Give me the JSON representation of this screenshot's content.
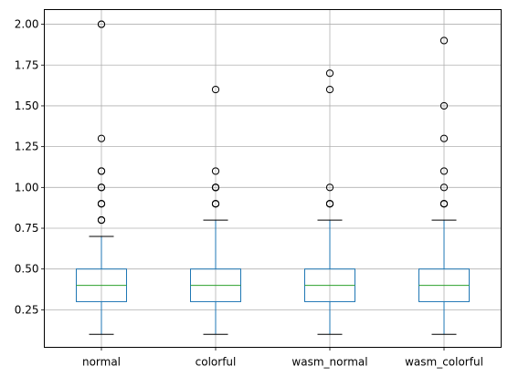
{
  "chart_data": {
    "type": "box",
    "title": "",
    "xlabel": "",
    "ylabel": "",
    "ylim": [
      0.02,
      2.09
    ],
    "yticks": [
      "0.25",
      "0.50",
      "0.75",
      "1.00",
      "1.25",
      "1.50",
      "1.75",
      "2.00"
    ],
    "grid": true,
    "categories": [
      "normal",
      "colorful",
      "wasm_normal",
      "wasm_colorful"
    ],
    "boxes": [
      {
        "label": "normal",
        "whisker_low": 0.1,
        "q1": 0.3,
        "median": 0.4,
        "q3": 0.5,
        "whisker_high": 0.7,
        "outliers": [
          0.8,
          0.8,
          0.8,
          0.9,
          0.9,
          0.9,
          1.0,
          1.0,
          1.1,
          1.1,
          1.3,
          2.0,
          2.0
        ]
      },
      {
        "label": "colorful",
        "whisker_low": 0.1,
        "q1": 0.3,
        "median": 0.4,
        "q3": 0.5,
        "whisker_high": 0.8,
        "outliers": [
          0.9,
          0.9,
          0.9,
          1.0,
          1.0,
          1.0,
          1.1,
          1.6
        ]
      },
      {
        "label": "wasm_normal",
        "whisker_low": 0.1,
        "q1": 0.3,
        "median": 0.4,
        "q3": 0.5,
        "whisker_high": 0.8,
        "outliers": [
          0.9,
          0.9,
          0.9,
          1.0,
          1.6,
          1.7
        ]
      },
      {
        "label": "wasm_colorful",
        "whisker_low": 0.1,
        "q1": 0.3,
        "median": 0.4,
        "q3": 0.5,
        "whisker_high": 0.8,
        "outliers": [
          0.9,
          0.9,
          0.9,
          1.0,
          1.1,
          1.3,
          1.5,
          1.9
        ]
      }
    ],
    "colors": {
      "box": "#1f77b4",
      "median": "#2ca02c",
      "whisker_cap": "#000000",
      "outlier": "#000000",
      "grid": "#b0b0b0",
      "axes": "#000000"
    }
  }
}
